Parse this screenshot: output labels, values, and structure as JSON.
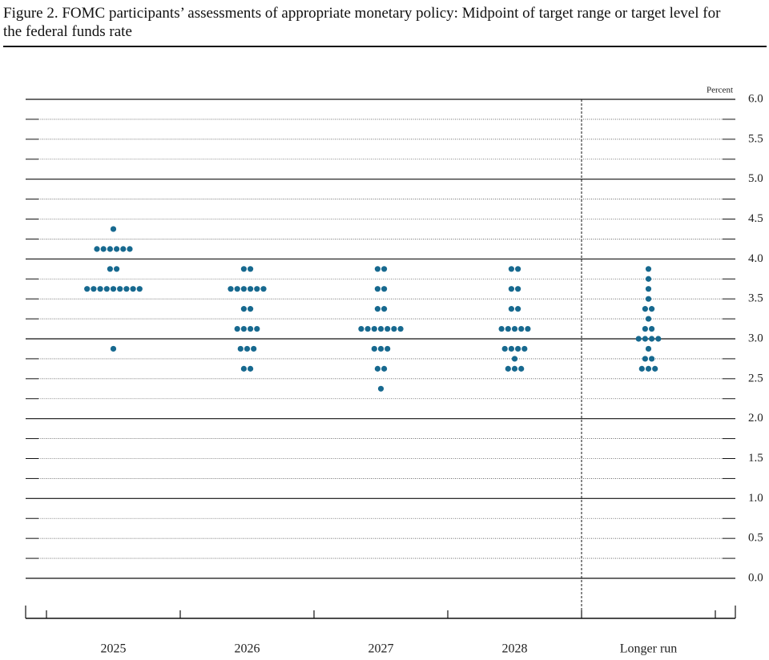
{
  "chart_data": {
    "type": "dot",
    "title": "Figure 2. FOMC participants’ assessments of appropriate monetary policy: Midpoint of target range or target level for the federal funds rate",
    "y_unit_label": "Percent",
    "ylim": [
      0,
      6
    ],
    "yticks": [
      {
        "value": 0,
        "label": "0.0"
      },
      {
        "value": 0.5,
        "label": "0.5"
      },
      {
        "value": 1,
        "label": "1.0"
      },
      {
        "value": 1.5,
        "label": "1.5"
      },
      {
        "value": 2,
        "label": "2.0"
      },
      {
        "value": 2.5,
        "label": "2.5"
      },
      {
        "value": 3,
        "label": "3.0"
      },
      {
        "value": 3.5,
        "label": "3.5"
      },
      {
        "value": 4,
        "label": "4.0"
      },
      {
        "value": 4.5,
        "label": "4.5"
      },
      {
        "value": 5,
        "label": "5.0"
      },
      {
        "value": 5.5,
        "label": "5.5"
      },
      {
        "value": 6,
        "label": "6.0"
      }
    ],
    "minor_yticks": [
      0.25,
      0.75,
      1.25,
      1.75,
      2.25,
      2.75,
      3.25,
      3.75,
      4.25,
      4.75,
      5.25,
      5.75
    ],
    "color": "#17698f",
    "columns": [
      {
        "label": "2025",
        "rates": [
          4.375,
          4.125,
          3.875,
          3.625,
          2.875
        ],
        "counts": [
          1,
          6,
          2,
          9,
          1
        ]
      },
      {
        "label": "2026",
        "rates": [
          3.875,
          3.625,
          3.375,
          3.125,
          2.875,
          2.625
        ],
        "counts": [
          2,
          6,
          2,
          4,
          3,
          2
        ]
      },
      {
        "label": "2027",
        "rates": [
          3.875,
          3.625,
          3.375,
          3.125,
          2.875,
          2.625,
          2.375
        ],
        "counts": [
          2,
          2,
          2,
          7,
          3,
          2,
          1
        ]
      },
      {
        "label": "2028",
        "rates": [
          3.875,
          3.625,
          3.375,
          3.125,
          2.875,
          2.75,
          2.625
        ],
        "counts": [
          2,
          2,
          2,
          5,
          4,
          1,
          3
        ]
      },
      {
        "label": "Longer run",
        "rates": [
          3.875,
          3.75,
          3.625,
          3.5,
          3.375,
          3.25,
          3.125,
          3.0,
          2.875,
          2.75,
          2.625
        ],
        "counts": [
          1,
          1,
          1,
          1,
          2,
          1,
          2,
          4,
          1,
          2,
          3
        ]
      }
    ]
  }
}
